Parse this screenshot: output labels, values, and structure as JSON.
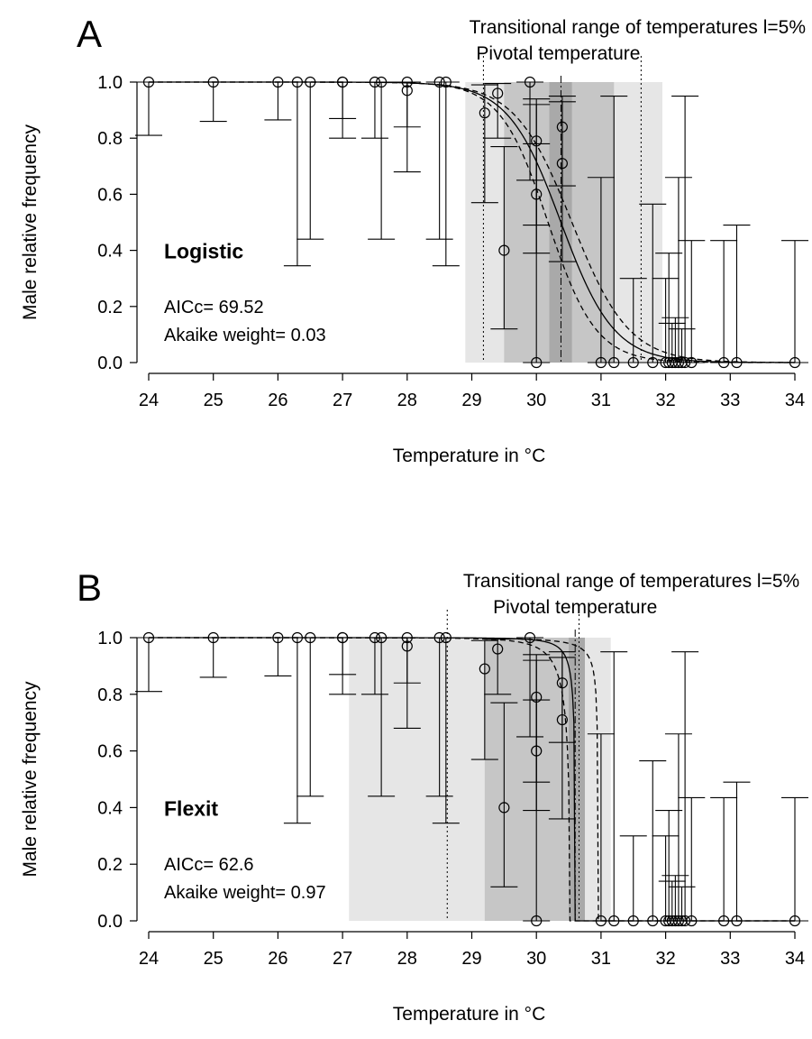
{
  "chart_data": [
    {
      "panel": "A",
      "type": "scatter",
      "model": "Logistic",
      "aicc_label": "AICc= 69.52",
      "weight_label": "Akaike weight= 0.03",
      "xlabel": "Temperature in °C",
      "ylabel": "Male relative frequency",
      "xlim": [
        24,
        34
      ],
      "ylim": [
        0,
        1
      ],
      "xticks": [
        24,
        25,
        26,
        27,
        28,
        29,
        30,
        31,
        32,
        33,
        34
      ],
      "yticks": [
        0.0,
        0.2,
        0.4,
        0.6,
        0.8,
        1.0
      ],
      "transitional_range_label": "Transitional range of temperatures l=5%",
      "pivotal_label": "Pivotal  temperature",
      "pivotal_temperature": 30.38,
      "transitional_range": [
        29.18,
        31.62
      ],
      "pivotal_ci": [
        30.2,
        30.55
      ],
      "transitional_range_ci_low": [
        28.9,
        29.5
      ],
      "transitional_range_ci_high": [
        31.2,
        31.95
      ],
      "curve": {
        "model": "logistic",
        "P": 30.38,
        "S": 0.41
      },
      "curve_low": {
        "model": "logistic",
        "P": 30.18,
        "S": 0.37
      },
      "curve_high": {
        "model": "logistic",
        "P": 30.55,
        "S": 0.44
      },
      "points": [
        {
          "x": 24.0,
          "y": 1.0,
          "lo": 0.81,
          "hi": 1.0
        },
        {
          "x": 25.0,
          "y": 1.0,
          "lo": 0.86,
          "hi": 1.0
        },
        {
          "x": 26.0,
          "y": 1.0,
          "lo": 0.865,
          "hi": 1.0
        },
        {
          "x": 26.3,
          "y": 1.0,
          "lo": 0.345,
          "hi": 1.0
        },
        {
          "x": 26.5,
          "y": 1.0,
          "lo": 0.44,
          "hi": 1.0
        },
        {
          "x": 27.0,
          "y": 1.0,
          "lo": 0.8,
          "hi": 1.0
        },
        {
          "x": 27.0,
          "y": 1.0,
          "lo": 0.87,
          "hi": 1.0
        },
        {
          "x": 27.5,
          "y": 1.0,
          "lo": 0.8,
          "hi": 1.0
        },
        {
          "x": 27.6,
          "y": 1.0,
          "lo": 0.44,
          "hi": 1.0
        },
        {
          "x": 28.0,
          "y": 1.0,
          "lo": 0.68,
          "hi": 1.0
        },
        {
          "x": 28.0,
          "y": 0.97,
          "lo": 0.84,
          "hi": 1.0
        },
        {
          "x": 28.5,
          "y": 1.0,
          "lo": 0.44,
          "hi": 1.0
        },
        {
          "x": 28.6,
          "y": 1.0,
          "lo": 0.345,
          "hi": 1.0
        },
        {
          "x": 29.2,
          "y": 0.89,
          "lo": 0.57,
          "hi": 0.99
        },
        {
          "x": 29.4,
          "y": 0.96,
          "lo": 0.8,
          "hi": 0.995
        },
        {
          "x": 29.5,
          "y": 0.4,
          "lo": 0.12,
          "hi": 0.77
        },
        {
          "x": 29.9,
          "y": 1.0,
          "lo": 0.65,
          "hi": 1.0
        },
        {
          "x": 30.0,
          "y": 0.79,
          "lo": 0.49,
          "hi": 0.94
        },
        {
          "x": 30.0,
          "y": 0.6,
          "lo": 0.39,
          "hi": 0.78
        },
        {
          "x": 30.0,
          "y": 0.0,
          "lo": 0.0,
          "hi": 0.92
        },
        {
          "x": 30.4,
          "y": 0.84,
          "lo": 0.63,
          "hi": 0.95
        },
        {
          "x": 30.4,
          "y": 0.71,
          "lo": 0.36,
          "hi": 0.93
        },
        {
          "x": 31.0,
          "y": 0.0,
          "lo": 0.0,
          "hi": 0.66
        },
        {
          "x": 31.2,
          "y": 0.0,
          "lo": 0.0,
          "hi": 0.95
        },
        {
          "x": 31.5,
          "y": 0.0,
          "lo": 0.0,
          "hi": 0.3
        },
        {
          "x": 31.8,
          "y": 0.0,
          "lo": 0.0,
          "hi": 0.565
        },
        {
          "x": 32.0,
          "y": 0.0,
          "lo": 0.0,
          "hi": 0.3
        },
        {
          "x": 32.05,
          "y": 0.0,
          "lo": 0.0,
          "hi": 0.39
        },
        {
          "x": 32.1,
          "y": 0.0,
          "lo": 0.0,
          "hi": 0.14
        },
        {
          "x": 32.15,
          "y": 0.0,
          "lo": 0.0,
          "hi": 0.16
        },
        {
          "x": 32.2,
          "y": 0.0,
          "lo": 0.0,
          "hi": 0.66
        },
        {
          "x": 32.25,
          "y": 0.0,
          "lo": 0.0,
          "hi": 0.12
        },
        {
          "x": 32.3,
          "y": 0.0,
          "lo": 0.0,
          "hi": 0.95
        },
        {
          "x": 32.4,
          "y": 0.0,
          "lo": 0.0,
          "hi": 0.435
        },
        {
          "x": 32.9,
          "y": 0.0,
          "lo": 0.0,
          "hi": 0.435
        },
        {
          "x": 33.1,
          "y": 0.0,
          "lo": 0.0,
          "hi": 0.49
        },
        {
          "x": 34.0,
          "y": 0.0,
          "lo": 0.0,
          "hi": 0.435
        }
      ]
    },
    {
      "panel": "B",
      "type": "scatter",
      "model": "Flexit",
      "aicc_label": "AICc= 62.6",
      "weight_label": "Akaike weight= 0.97",
      "xlabel": "Temperature in °C",
      "ylabel": "Male relative frequency",
      "xlim": [
        24,
        34
      ],
      "ylim": [
        0,
        1
      ],
      "xticks": [
        24,
        25,
        26,
        27,
        28,
        29,
        30,
        31,
        32,
        33,
        34
      ],
      "yticks": [
        0.0,
        0.2,
        0.4,
        0.6,
        0.8,
        1.0
      ],
      "transitional_range_label": "Transitional range of temperatures l=5%",
      "pivotal_label": "Pivotal  temperature",
      "pivotal_temperature": 30.6,
      "transitional_range": [
        28.62,
        30.66
      ],
      "pivotal_ci": [
        30.5,
        30.75
      ],
      "transitional_range_ci_low": [
        27.1,
        29.2
      ],
      "transitional_range_ci_high": [
        30.6,
        31.15
      ],
      "curve": {
        "model": "flexit",
        "P": 30.6,
        "K1": 3.2,
        "a": 0.4
      },
      "curve_low": {
        "model": "flexit",
        "P": 30.52,
        "K1": 2.6,
        "a": 0.5
      },
      "curve_high": {
        "model": "flexit",
        "P": 30.95,
        "K1": 2.8,
        "a": 0.32
      },
      "points": [
        {
          "x": 24.0,
          "y": 1.0,
          "lo": 0.81,
          "hi": 1.0
        },
        {
          "x": 25.0,
          "y": 1.0,
          "lo": 0.86,
          "hi": 1.0
        },
        {
          "x": 26.0,
          "y": 1.0,
          "lo": 0.865,
          "hi": 1.0
        },
        {
          "x": 26.3,
          "y": 1.0,
          "lo": 0.345,
          "hi": 1.0
        },
        {
          "x": 26.5,
          "y": 1.0,
          "lo": 0.44,
          "hi": 1.0
        },
        {
          "x": 27.0,
          "y": 1.0,
          "lo": 0.8,
          "hi": 1.0
        },
        {
          "x": 27.0,
          "y": 1.0,
          "lo": 0.87,
          "hi": 1.0
        },
        {
          "x": 27.5,
          "y": 1.0,
          "lo": 0.8,
          "hi": 1.0
        },
        {
          "x": 27.6,
          "y": 1.0,
          "lo": 0.44,
          "hi": 1.0
        },
        {
          "x": 28.0,
          "y": 1.0,
          "lo": 0.68,
          "hi": 1.0
        },
        {
          "x": 28.0,
          "y": 0.97,
          "lo": 0.84,
          "hi": 1.0
        },
        {
          "x": 28.5,
          "y": 1.0,
          "lo": 0.44,
          "hi": 1.0
        },
        {
          "x": 28.6,
          "y": 1.0,
          "lo": 0.345,
          "hi": 1.0
        },
        {
          "x": 29.2,
          "y": 0.89,
          "lo": 0.57,
          "hi": 0.99
        },
        {
          "x": 29.4,
          "y": 0.96,
          "lo": 0.8,
          "hi": 0.995
        },
        {
          "x": 29.5,
          "y": 0.4,
          "lo": 0.12,
          "hi": 0.77
        },
        {
          "x": 29.9,
          "y": 1.0,
          "lo": 0.65,
          "hi": 1.0
        },
        {
          "x": 30.0,
          "y": 0.79,
          "lo": 0.49,
          "hi": 0.94
        },
        {
          "x": 30.0,
          "y": 0.6,
          "lo": 0.39,
          "hi": 0.78
        },
        {
          "x": 30.0,
          "y": 0.0,
          "lo": 0.0,
          "hi": 0.92
        },
        {
          "x": 30.4,
          "y": 0.84,
          "lo": 0.63,
          "hi": 0.95
        },
        {
          "x": 30.4,
          "y": 0.71,
          "lo": 0.36,
          "hi": 0.93
        },
        {
          "x": 31.0,
          "y": 0.0,
          "lo": 0.0,
          "hi": 0.66
        },
        {
          "x": 31.2,
          "y": 0.0,
          "lo": 0.0,
          "hi": 0.95
        },
        {
          "x": 31.5,
          "y": 0.0,
          "lo": 0.0,
          "hi": 0.3
        },
        {
          "x": 31.8,
          "y": 0.0,
          "lo": 0.0,
          "hi": 0.565
        },
        {
          "x": 32.0,
          "y": 0.0,
          "lo": 0.0,
          "hi": 0.3
        },
        {
          "x": 32.05,
          "y": 0.0,
          "lo": 0.0,
          "hi": 0.39
        },
        {
          "x": 32.1,
          "y": 0.0,
          "lo": 0.0,
          "hi": 0.14
        },
        {
          "x": 32.15,
          "y": 0.0,
          "lo": 0.0,
          "hi": 0.16
        },
        {
          "x": 32.2,
          "y": 0.0,
          "lo": 0.0,
          "hi": 0.66
        },
        {
          "x": 32.25,
          "y": 0.0,
          "lo": 0.0,
          "hi": 0.12
        },
        {
          "x": 32.3,
          "y": 0.0,
          "lo": 0.0,
          "hi": 0.95
        },
        {
          "x": 32.4,
          "y": 0.0,
          "lo": 0.0,
          "hi": 0.435
        },
        {
          "x": 32.9,
          "y": 0.0,
          "lo": 0.0,
          "hi": 0.435
        },
        {
          "x": 33.1,
          "y": 0.0,
          "lo": 0.0,
          "hi": 0.49
        },
        {
          "x": 34.0,
          "y": 0.0,
          "lo": 0.0,
          "hi": 0.435
        }
      ]
    }
  ]
}
